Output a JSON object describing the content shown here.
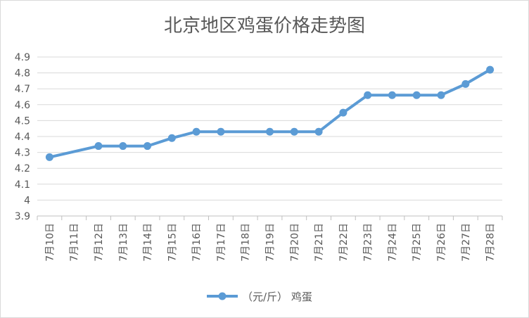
{
  "chart_data": {
    "type": "line",
    "title": "北京地区鸡蛋价格走势图",
    "categories": [
      "7月10日",
      "7月11日",
      "7月12日",
      "7月13日",
      "7月14日",
      "7月15日",
      "7月16日",
      "7月17日",
      "7月18日",
      "7月19日",
      "7月20日",
      "7月21日",
      "7月22日",
      "7月23日",
      "7月24日",
      "7月25日",
      "7月26日",
      "7月27日",
      "7月28日"
    ],
    "series": [
      {
        "name": "（元/斤）  鸡蛋",
        "values": [
          4.27,
          null,
          4.34,
          4.34,
          4.34,
          4.39,
          4.43,
          4.43,
          null,
          4.43,
          4.43,
          4.43,
          4.55,
          4.66,
          4.66,
          4.66,
          4.66,
          4.73,
          4.82
        ],
        "color": "#5b9bd5"
      }
    ],
    "ylim": [
      3.9,
      4.9
    ],
    "yticks": [
      "3.9",
      "4",
      "4.1",
      "4.2",
      "4.3",
      "4.4",
      "4.5",
      "4.6",
      "4.7",
      "4.8",
      "4.9"
    ],
    "grid": true,
    "legend_position": "bottom"
  }
}
